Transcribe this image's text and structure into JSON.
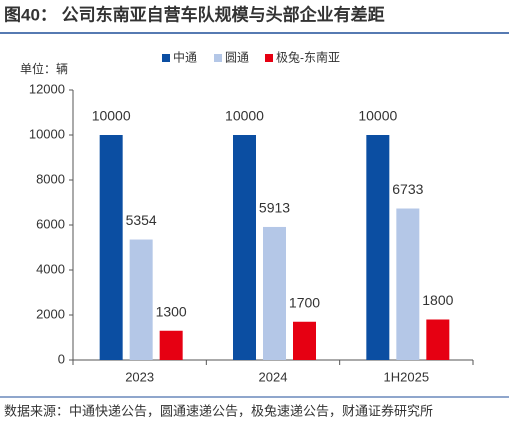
{
  "chart_data": {
    "type": "bar",
    "title": "图40： 公司东南亚自营车队规模与头部企业有差距",
    "y_unit_label": "单位：辆",
    "source": "数据来源：中通快递公告，圆通速递公告，极兔速递公告，财通证券研究所",
    "categories": [
      "2023",
      "2024",
      "1H2025"
    ],
    "series": [
      {
        "name": "中通",
        "color": "#0b4ea2",
        "values": [
          10000,
          10000,
          10000
        ]
      },
      {
        "name": "圆通",
        "color": "#b4c7e7",
        "values": [
          5354,
          5913,
          6733
        ]
      },
      {
        "name": "极兔-东南亚",
        "color": "#e60012",
        "values": [
          1300,
          1700,
          1800
        ]
      }
    ],
    "ylim": [
      0,
      12000
    ],
    "yticks": [
      0,
      2000,
      4000,
      6000,
      8000,
      10000,
      12000
    ],
    "legend": "top"
  }
}
